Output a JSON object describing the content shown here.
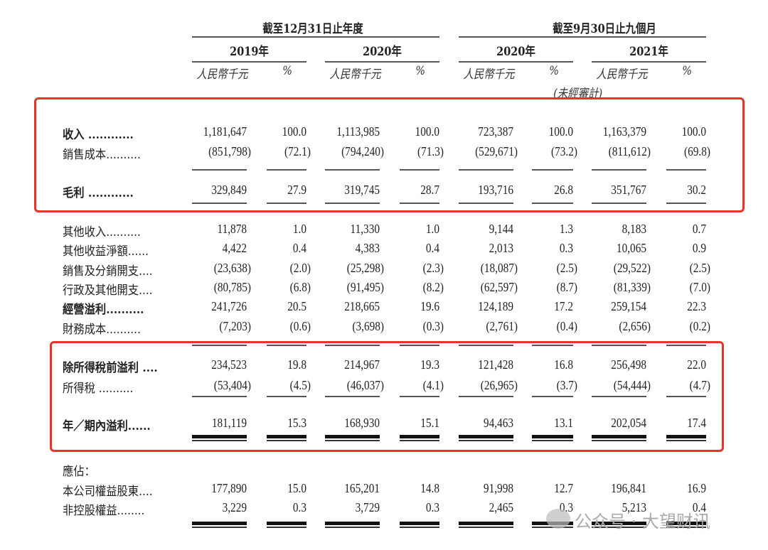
{
  "header": {
    "group_left": "截至12月31日止年度",
    "group_right": "截至9月30日止九個月",
    "years": [
      "2019年",
      "2020年",
      "2020年",
      "2021年"
    ],
    "unit_amount": "人民幣千元",
    "unit_pct": "%",
    "unaudited": "(未經審計)"
  },
  "rows": [
    {
      "label": "收入 ............",
      "bold": true,
      "values": [
        "1,181,647",
        "100.0",
        "1,113,985",
        "100.0",
        "723,387",
        "100.0",
        "1,163,379",
        "100.0"
      ]
    },
    {
      "label": "銷售成本..........",
      "bold": false,
      "values": [
        "(851,798)",
        "(72.1)",
        "(794,240)",
        "(71.3)",
        "(529,671)",
        "(73.2)",
        "(811,612)",
        "(69.8)"
      ]
    },
    {
      "label": "毛利 ............",
      "bold": true,
      "values": [
        "329,849",
        "27.9",
        "319,745",
        "28.7",
        "193,716",
        "26.8",
        "351,767",
        "30.2"
      ]
    },
    {
      "label": "其他收入..........",
      "bold": false,
      "values": [
        "11,878",
        "1.0",
        "11,330",
        "1.0",
        "9,144",
        "1.3",
        "8,183",
        "0.7"
      ]
    },
    {
      "label": "其他收益淨額......",
      "bold": false,
      "values": [
        "4,422",
        "0.4",
        "4,383",
        "0.4",
        "2,013",
        "0.3",
        "10,065",
        "0.9"
      ]
    },
    {
      "label": "銷售及分銷開支....",
      "bold": false,
      "values": [
        "(23,638)",
        "(2.0)",
        "(25,298)",
        "(2.3)",
        "(18,087)",
        "(2.5)",
        "(29,522)",
        "(2.5)"
      ]
    },
    {
      "label": "行政及其他開支....",
      "bold": false,
      "values": [
        "(80,785)",
        "(6.8)",
        "(91,495)",
        "(8.2)",
        "(62,597)",
        "(8.7)",
        "(81,339)",
        "(7.0)"
      ]
    },
    {
      "label": "經營溢利..........",
      "bold": true,
      "values": [
        "241,726",
        "20.5",
        "218,665",
        "19.6",
        "124,189",
        "17.2",
        "259,154",
        "22.3"
      ]
    },
    {
      "label": "財務成本..........",
      "bold": false,
      "values": [
        "(7,203)",
        "(0.6)",
        "(3,698)",
        "(0.3)",
        "(2,761)",
        "(0.4)",
        "(2,656)",
        "(0.2)"
      ]
    },
    {
      "label": "除所得稅前溢利 ....",
      "bold": true,
      "values": [
        "234,523",
        "19.8",
        "214,967",
        "19.3",
        "121,428",
        "16.8",
        "256,498",
        "22.0"
      ]
    },
    {
      "label": "所得稅 ..........",
      "bold": false,
      "values": [
        "(53,404)",
        "(4.5)",
        "(46,037)",
        "(4.1)",
        "(26,965)",
        "(3.7)",
        "(54,444)",
        "(4.7)"
      ]
    },
    {
      "label": "年／期內溢利......",
      "bold": true,
      "values": [
        "181,119",
        "15.3",
        "168,930",
        "15.1",
        "94,463",
        "13.1",
        "202,054",
        "17.4"
      ]
    },
    {
      "label": "應佔：",
      "bold": false,
      "values": []
    },
    {
      "label": "本公司權益股東....",
      "bold": false,
      "values": [
        "177,890",
        "15.0",
        "165,201",
        "14.8",
        "91,998",
        "12.7",
        "196,841",
        "16.9"
      ]
    },
    {
      "label": "非控股權益........",
      "bold": false,
      "values": [
        "3,229",
        "0.3",
        "3,729",
        "0.3",
        "2,465",
        "0.3",
        "5,213",
        "0.4"
      ]
    }
  ],
  "highlight_color": "#e8322a",
  "watermark": "公众号 · 大望财讯"
}
